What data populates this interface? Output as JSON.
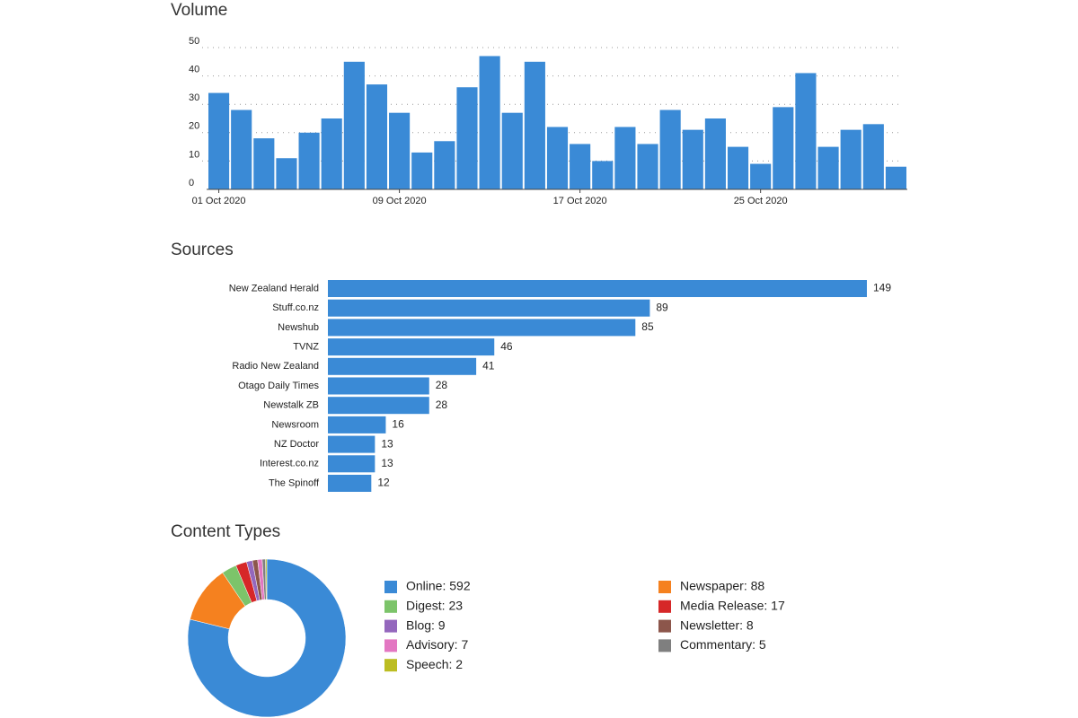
{
  "chart_data": [
    {
      "type": "bar",
      "title": "Volume",
      "categories": [
        "01 Oct 2020",
        null,
        null,
        null,
        null,
        null,
        null,
        null,
        "09 Oct 2020",
        null,
        null,
        null,
        null,
        null,
        null,
        null,
        "17 Oct 2020",
        null,
        null,
        null,
        null,
        null,
        null,
        null,
        "25 Oct 2020",
        null,
        null,
        null,
        null,
        null,
        null
      ],
      "values": [
        34,
        28,
        18,
        11,
        20,
        25,
        45,
        37,
        27,
        13,
        17,
        36,
        47,
        27,
        45,
        22,
        16,
        10,
        22,
        16,
        28,
        21,
        25,
        15,
        9,
        29,
        41,
        15,
        21,
        23,
        8
      ],
      "color": "#3a8ad6",
      "ylim": [
        0,
        50
      ],
      "yticks": [
        0,
        10,
        20,
        30,
        40,
        50
      ],
      "grid": true
    },
    {
      "type": "hbar",
      "title": "Sources",
      "categories": [
        "New Zealand Herald",
        "Stuff.co.nz",
        "Newshub",
        "TVNZ",
        "Radio New Zealand",
        "Otago Daily Times",
        "Newstalk ZB",
        "Newsroom",
        "NZ Doctor",
        "Interest.co.nz",
        "The Spinoff"
      ],
      "values": [
        149,
        89,
        85,
        46,
        41,
        28,
        28,
        16,
        13,
        13,
        12
      ],
      "color": "#3a8ad6"
    },
    {
      "type": "donut",
      "title": "Content Types",
      "values": [
        592,
        88,
        23,
        17,
        9,
        8,
        7,
        5,
        2
      ],
      "value_labels": [
        "Online: 592",
        "Newspaper: 88",
        "Digest: 23",
        "Media Release: 17",
        "Blog: 9",
        "Newsletter: 8",
        "Advisory: 7",
        "Commentary: 5",
        "Speech: 2"
      ],
      "colors": [
        "#3a8ad6",
        "#f5811f",
        "#7cc46a",
        "#d62728",
        "#9467bd",
        "#8c564b",
        "#e377c2",
        "#7f7f7f",
        "#bcbd22"
      ]
    }
  ]
}
